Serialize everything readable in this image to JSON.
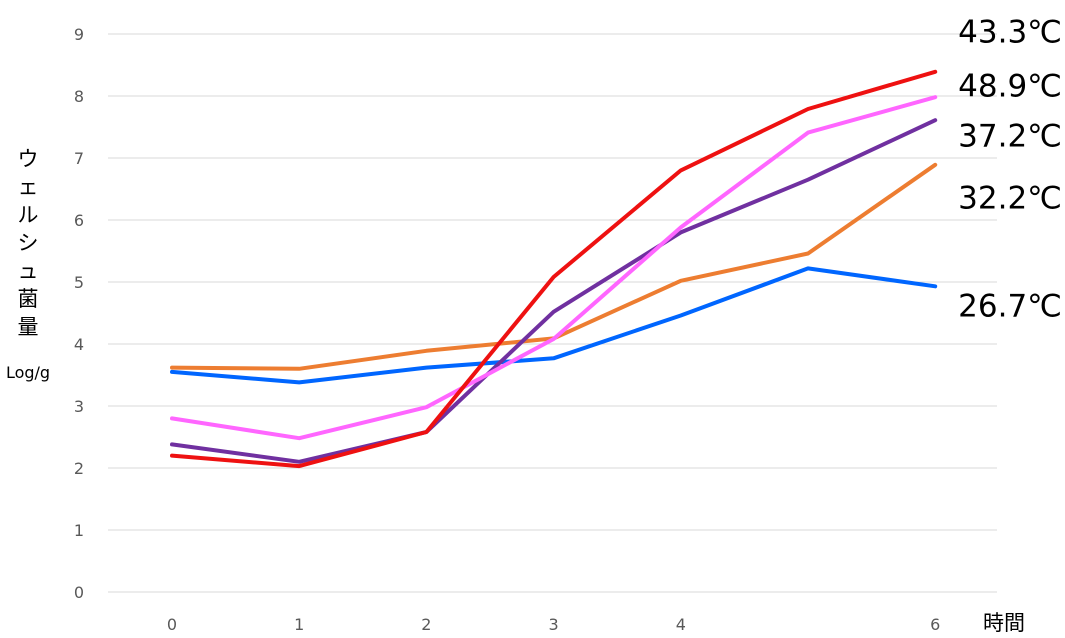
{
  "chart_data": {
    "type": "line",
    "title": "",
    "xlabel": "時間",
    "ylabel": "ウェルシュ菌量",
    "ylabel_unit": "Log/g",
    "ylim": [
      0,
      9
    ],
    "yticks": [
      "0",
      "1",
      "2",
      "3",
      "4",
      "5",
      "6",
      "7",
      "8",
      "9"
    ],
    "x": [
      0,
      1,
      2,
      3,
      4,
      5,
      6
    ],
    "xtick_labels": [
      "0",
      "1",
      "2",
      "3",
      "4",
      "",
      "6"
    ],
    "grid": true,
    "legend": "direct labels at right end of lines",
    "series": [
      {
        "name": "43.3℃",
        "color": "#ee1111",
        "values": [
          2.2,
          2.03,
          2.58,
          5.08,
          6.8,
          7.79,
          8.39
        ]
      },
      {
        "name": "48.9℃",
        "color": "#ff66ff",
        "values": [
          2.8,
          2.48,
          2.98,
          4.08,
          5.88,
          7.41,
          7.98
        ]
      },
      {
        "name": "37.2℃",
        "color": "#7030a0",
        "values": [
          2.38,
          2.1,
          2.58,
          4.52,
          5.8,
          6.65,
          7.61
        ]
      },
      {
        "name": "32.2℃",
        "color": "#ed7d31",
        "values": [
          3.62,
          3.6,
          3.89,
          4.09,
          5.02,
          5.46,
          6.89
        ]
      },
      {
        "name": "26.7℃",
        "color": "#0066ff",
        "values": [
          3.55,
          3.38,
          3.62,
          3.77,
          4.46,
          5.22,
          4.93
        ]
      }
    ]
  }
}
